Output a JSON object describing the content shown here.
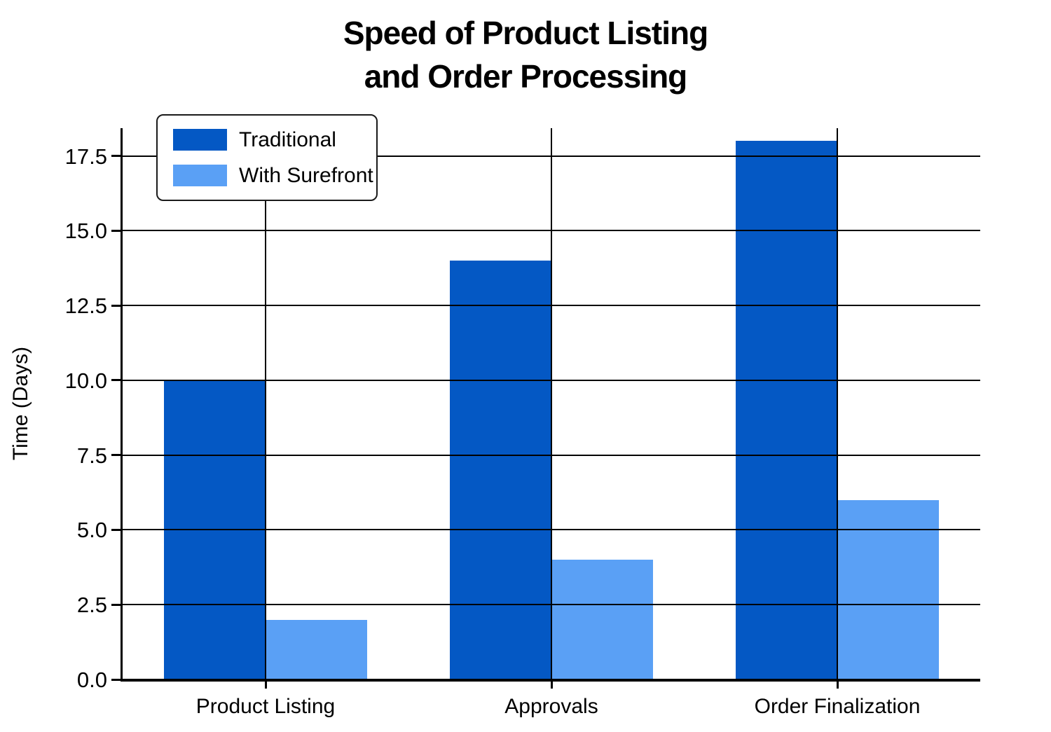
{
  "chart_data": {
    "type": "bar",
    "title": "Speed of Product Listing and Order Processing",
    "title_lines": [
      "Speed of Product Listing",
      "and Order Processing"
    ],
    "ylabel": "Time (Days)",
    "xlabel": "",
    "categories": [
      "Product Listing",
      "Approvals",
      "Order Finalization"
    ],
    "series": [
      {
        "name": "Traditional",
        "color": "#0458C4",
        "values": [
          10,
          14,
          18
        ]
      },
      {
        "name": "With Surefront",
        "color": "#5AA0F5",
        "values": [
          2,
          4,
          6
        ]
      }
    ],
    "yticks": [
      0.0,
      2.5,
      5.0,
      7.5,
      10.0,
      12.5,
      15.0,
      17.5
    ],
    "ytick_labels": [
      "0.0",
      "2.5",
      "5.0",
      "7.5",
      "10.0",
      "12.5",
      "15.0",
      "17.5"
    ],
    "ylim": [
      0,
      18.43
    ],
    "grid": true,
    "gridline_color": "#000000",
    "background_color": "#ffffff",
    "legend_position": "upper-left"
  }
}
